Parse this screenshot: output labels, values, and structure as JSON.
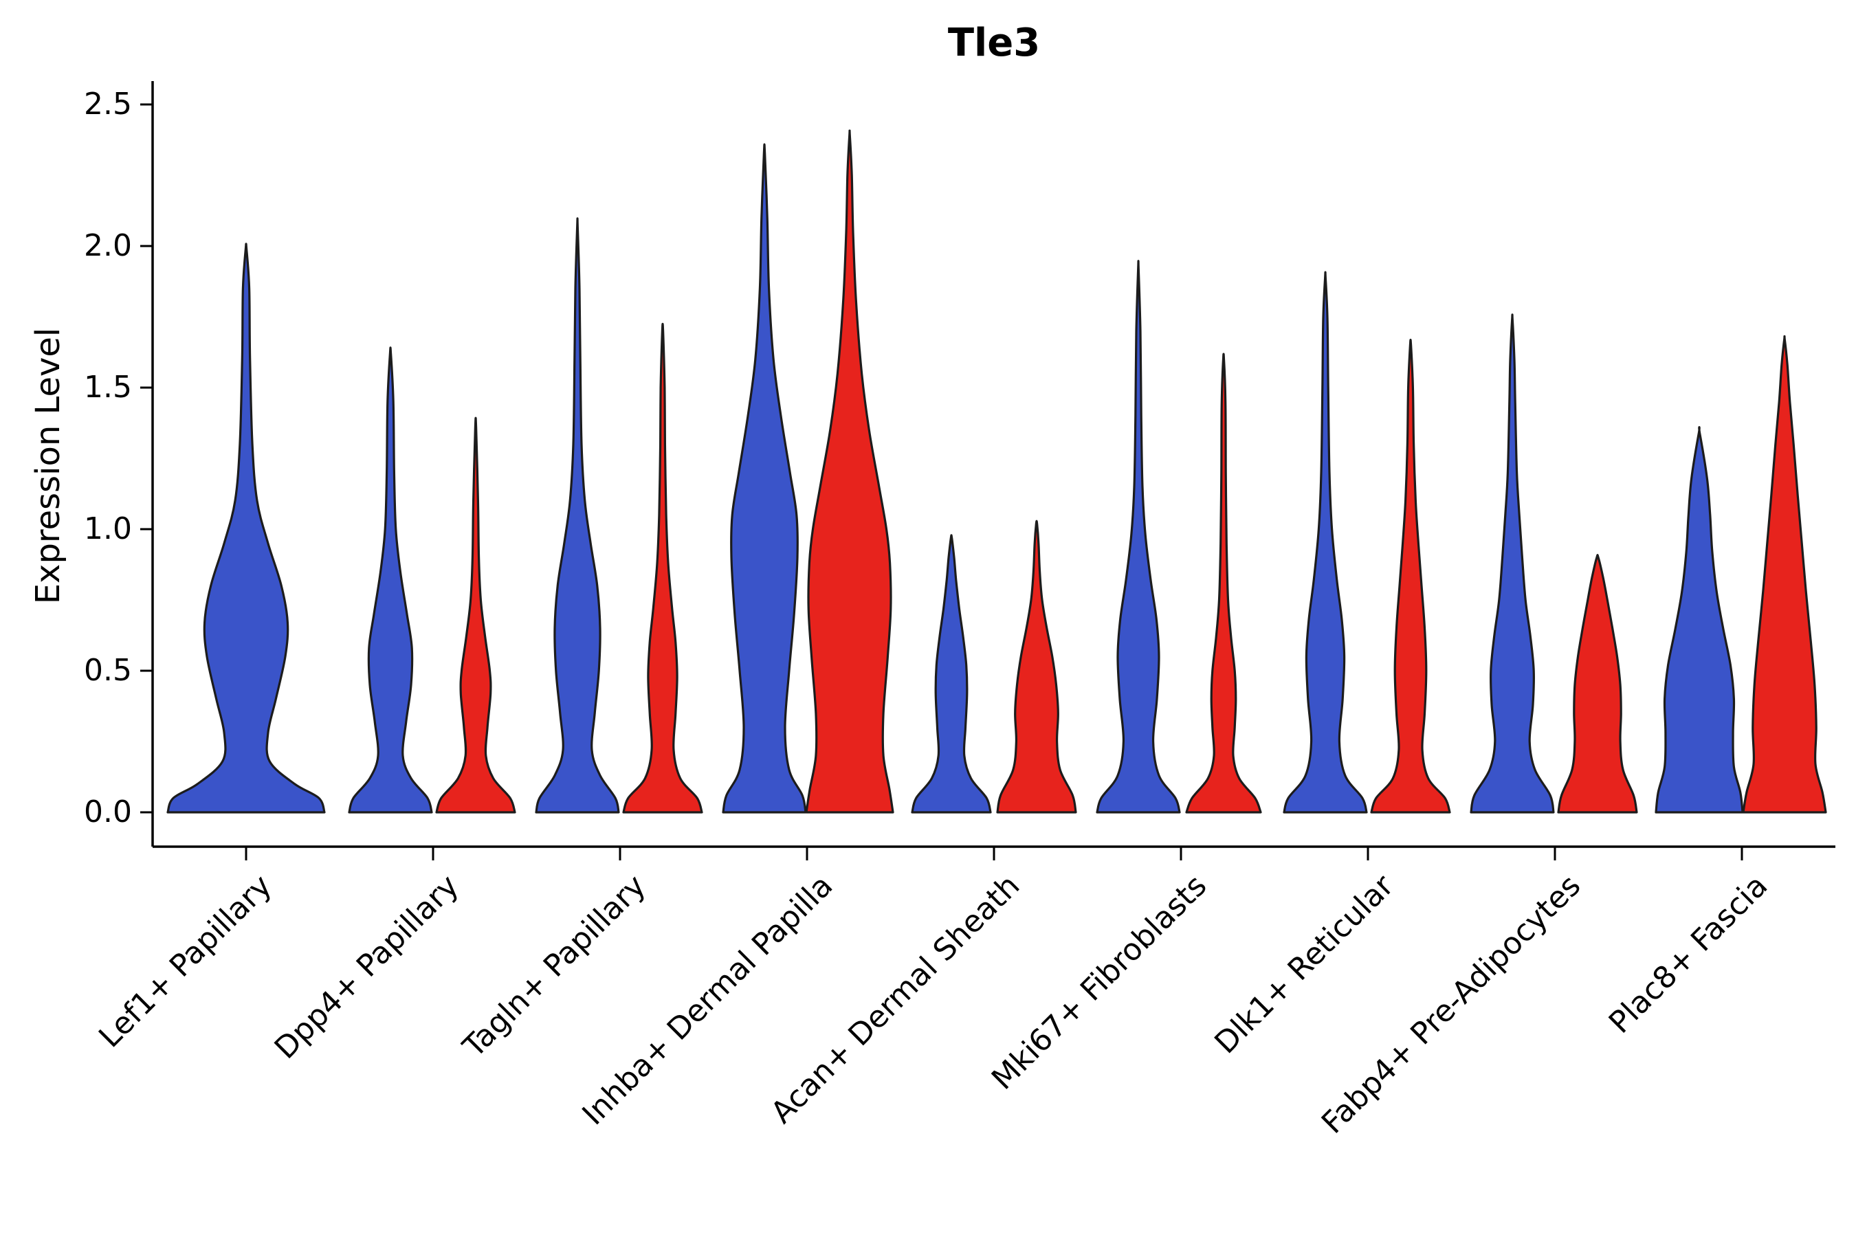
{
  "chart_data": {
    "type": "violin",
    "title": "Tle3",
    "ylabel": "Expression Level",
    "ylim": [
      0,
      2.5
    ],
    "ytick_labels": [
      "0.0",
      "0.5",
      "1.0",
      "1.5",
      "2.0",
      "2.5"
    ],
    "grid": false,
    "legend": "none",
    "edge_color": "#1c1c1c",
    "categories": [
      "Lef1+ Papillary",
      "Dpp4+ Papillary",
      "Tagln+ Papillary",
      "Inhba+ Dermal Papilla",
      "Acan+ Dermal Sheath",
      "Mki67+ Fibroblasts",
      "Dlk1+ Reticular",
      "Fabp4+ Pre-Adipocytes",
      "Plac8+ Fascia"
    ],
    "series": [
      {
        "name": "group-blue",
        "color": "#3a54c9",
        "violins": [
          {
            "max": 1.99,
            "scale": 1.9,
            "profile": [
              [
                0,
                1.0
              ],
              [
                0.05,
                0.93
              ],
              [
                0.1,
                0.62
              ],
              [
                0.18,
                0.3
              ],
              [
                0.28,
                0.28
              ],
              [
                0.4,
                0.38
              ],
              [
                0.55,
                0.5
              ],
              [
                0.67,
                0.53
              ],
              [
                0.8,
                0.45
              ],
              [
                0.95,
                0.28
              ],
              [
                1.1,
                0.14
              ],
              [
                1.3,
                0.08
              ],
              [
                1.6,
                0.05
              ],
              [
                1.85,
                0.04
              ],
              [
                1.99,
                0.005
              ]
            ]
          },
          {
            "max": 1.62,
            "scale": 1.0,
            "profile": [
              [
                0,
                1.0
              ],
              [
                0.05,
                0.9
              ],
              [
                0.12,
                0.5
              ],
              [
                0.2,
                0.3
              ],
              [
                0.32,
                0.38
              ],
              [
                0.45,
                0.5
              ],
              [
                0.58,
                0.52
              ],
              [
                0.7,
                0.4
              ],
              [
                0.85,
                0.24
              ],
              [
                1.0,
                0.13
              ],
              [
                1.2,
                0.09
              ],
              [
                1.45,
                0.07
              ],
              [
                1.62,
                0.01
              ]
            ]
          },
          {
            "max": 2.07,
            "scale": 1.0,
            "profile": [
              [
                0,
                1.0
              ],
              [
                0.05,
                0.92
              ],
              [
                0.13,
                0.55
              ],
              [
                0.22,
                0.35
              ],
              [
                0.35,
                0.42
              ],
              [
                0.5,
                0.52
              ],
              [
                0.65,
                0.55
              ],
              [
                0.8,
                0.48
              ],
              [
                0.95,
                0.32
              ],
              [
                1.1,
                0.18
              ],
              [
                1.3,
                0.1
              ],
              [
                1.6,
                0.07
              ],
              [
                1.85,
                0.05
              ],
              [
                2.07,
                0.005
              ]
            ]
          },
          {
            "max": 2.33,
            "scale": 1.0,
            "profile": [
              [
                0,
                1.0
              ],
              [
                0.06,
                0.92
              ],
              [
                0.15,
                0.6
              ],
              [
                0.3,
                0.5
              ],
              [
                0.5,
                0.6
              ],
              [
                0.7,
                0.72
              ],
              [
                0.9,
                0.8
              ],
              [
                1.05,
                0.78
              ],
              [
                1.2,
                0.62
              ],
              [
                1.4,
                0.4
              ],
              [
                1.6,
                0.22
              ],
              [
                1.85,
                0.11
              ],
              [
                2.1,
                0.07
              ],
              [
                2.33,
                0.01
              ]
            ]
          },
          {
            "max": 0.97,
            "scale": 0.95,
            "profile": [
              [
                0,
                1.0
              ],
              [
                0.05,
                0.9
              ],
              [
                0.12,
                0.5
              ],
              [
                0.2,
                0.33
              ],
              [
                0.3,
                0.36
              ],
              [
                0.42,
                0.4
              ],
              [
                0.52,
                0.38
              ],
              [
                0.62,
                0.3
              ],
              [
                0.72,
                0.2
              ],
              [
                0.82,
                0.12
              ],
              [
                0.9,
                0.07
              ],
              [
                0.97,
                0.01
              ]
            ]
          },
          {
            "max": 1.92,
            "scale": 1.0,
            "profile": [
              [
                0,
                1.0
              ],
              [
                0.05,
                0.9
              ],
              [
                0.13,
                0.5
              ],
              [
                0.25,
                0.36
              ],
              [
                0.4,
                0.45
              ],
              [
                0.55,
                0.5
              ],
              [
                0.68,
                0.44
              ],
              [
                0.82,
                0.3
              ],
              [
                0.98,
                0.17
              ],
              [
                1.15,
                0.1
              ],
              [
                1.4,
                0.07
              ],
              [
                1.7,
                0.05
              ],
              [
                1.92,
                0.005
              ]
            ]
          },
          {
            "max": 1.89,
            "scale": 1.0,
            "profile": [
              [
                0,
                1.0
              ],
              [
                0.05,
                0.9
              ],
              [
                0.13,
                0.48
              ],
              [
                0.25,
                0.34
              ],
              [
                0.4,
                0.42
              ],
              [
                0.55,
                0.46
              ],
              [
                0.68,
                0.4
              ],
              [
                0.82,
                0.28
              ],
              [
                1.0,
                0.16
              ],
              [
                1.2,
                0.1
              ],
              [
                1.5,
                0.07
              ],
              [
                1.75,
                0.05
              ],
              [
                1.89,
                0.005
              ]
            ]
          },
          {
            "max": 1.74,
            "scale": 1.0,
            "profile": [
              [
                0,
                1.0
              ],
              [
                0.06,
                0.92
              ],
              [
                0.15,
                0.55
              ],
              [
                0.25,
                0.42
              ],
              [
                0.38,
                0.5
              ],
              [
                0.5,
                0.52
              ],
              [
                0.62,
                0.44
              ],
              [
                0.75,
                0.32
              ],
              [
                0.9,
                0.24
              ],
              [
                1.05,
                0.17
              ],
              [
                1.2,
                0.11
              ],
              [
                1.45,
                0.07
              ],
              [
                1.6,
                0.05
              ],
              [
                1.74,
                0.005
              ]
            ]
          },
          {
            "max": 1.34,
            "scale": 1.05,
            "profile": [
              [
                0,
                1.0
              ],
              [
                0.07,
                0.95
              ],
              [
                0.16,
                0.8
              ],
              [
                0.28,
                0.78
              ],
              [
                0.4,
                0.8
              ],
              [
                0.52,
                0.72
              ],
              [
                0.65,
                0.55
              ],
              [
                0.78,
                0.4
              ],
              [
                0.92,
                0.3
              ],
              [
                1.05,
                0.25
              ],
              [
                1.18,
                0.18
              ],
              [
                1.34,
                0.01
              ]
            ]
          }
        ]
      },
      {
        "name": "group-red",
        "color": "#e7231d",
        "violins": [
          null,
          {
            "max": 1.36,
            "scale": 0.95,
            "profile": [
              [
                0,
                1.0
              ],
              [
                0.05,
                0.88
              ],
              [
                0.12,
                0.45
              ],
              [
                0.2,
                0.26
              ],
              [
                0.3,
                0.3
              ],
              [
                0.42,
                0.38
              ],
              [
                0.5,
                0.36
              ],
              [
                0.62,
                0.24
              ],
              [
                0.75,
                0.13
              ],
              [
                0.9,
                0.08
              ],
              [
                1.1,
                0.06
              ],
              [
                1.36,
                0.01
              ]
            ]
          },
          {
            "max": 1.7,
            "scale": 0.95,
            "profile": [
              [
                0,
                1.0
              ],
              [
                0.05,
                0.88
              ],
              [
                0.12,
                0.45
              ],
              [
                0.22,
                0.28
              ],
              [
                0.35,
                0.33
              ],
              [
                0.48,
                0.37
              ],
              [
                0.6,
                0.33
              ],
              [
                0.72,
                0.24
              ],
              [
                0.88,
                0.14
              ],
              [
                1.05,
                0.09
              ],
              [
                1.3,
                0.06
              ],
              [
                1.5,
                0.05
              ],
              [
                1.7,
                0.01
              ]
            ]
          },
          {
            "max": 2.39,
            "scale": 1.05,
            "profile": [
              [
                0,
                1.0
              ],
              [
                0.08,
                0.92
              ],
              [
                0.2,
                0.78
              ],
              [
                0.35,
                0.78
              ],
              [
                0.55,
                0.88
              ],
              [
                0.72,
                0.95
              ],
              [
                0.88,
                0.93
              ],
              [
                1.0,
                0.85
              ],
              [
                1.15,
                0.68
              ],
              [
                1.35,
                0.45
              ],
              [
                1.55,
                0.28
              ],
              [
                1.8,
                0.15
              ],
              [
                2.05,
                0.08
              ],
              [
                2.25,
                0.05
              ],
              [
                2.39,
                0.005
              ]
            ]
          },
          {
            "max": 1.02,
            "scale": 0.95,
            "profile": [
              [
                0,
                1.0
              ],
              [
                0.06,
                0.92
              ],
              [
                0.15,
                0.6
              ],
              [
                0.25,
                0.52
              ],
              [
                0.35,
                0.55
              ],
              [
                0.45,
                0.5
              ],
              [
                0.55,
                0.4
              ],
              [
                0.65,
                0.26
              ],
              [
                0.75,
                0.14
              ],
              [
                0.85,
                0.08
              ],
              [
                0.95,
                0.05
              ],
              [
                1.02,
                0.01
              ]
            ]
          },
          {
            "max": 1.6,
            "scale": 0.9,
            "profile": [
              [
                0,
                1.0
              ],
              [
                0.05,
                0.85
              ],
              [
                0.12,
                0.42
              ],
              [
                0.2,
                0.26
              ],
              [
                0.3,
                0.3
              ],
              [
                0.4,
                0.33
              ],
              [
                0.5,
                0.3
              ],
              [
                0.62,
                0.2
              ],
              [
                0.75,
                0.12
              ],
              [
                0.95,
                0.08
              ],
              [
                1.2,
                0.06
              ],
              [
                1.45,
                0.05
              ],
              [
                1.6,
                0.01
              ]
            ]
          },
          {
            "max": 1.65,
            "scale": 0.95,
            "profile": [
              [
                0,
                1.0
              ],
              [
                0.05,
                0.88
              ],
              [
                0.12,
                0.45
              ],
              [
                0.22,
                0.3
              ],
              [
                0.35,
                0.36
              ],
              [
                0.5,
                0.4
              ],
              [
                0.65,
                0.36
              ],
              [
                0.8,
                0.28
              ],
              [
                0.95,
                0.2
              ],
              [
                1.1,
                0.13
              ],
              [
                1.3,
                0.08
              ],
              [
                1.5,
                0.06
              ],
              [
                1.65,
                0.01
              ]
            ]
          },
          {
            "max": 0.9,
            "scale": 0.95,
            "profile": [
              [
                0,
                1.0
              ],
              [
                0.06,
                0.92
              ],
              [
                0.15,
                0.65
              ],
              [
                0.25,
                0.58
              ],
              [
                0.35,
                0.6
              ],
              [
                0.45,
                0.58
              ],
              [
                0.55,
                0.5
              ],
              [
                0.65,
                0.38
              ],
              [
                0.75,
                0.25
              ],
              [
                0.83,
                0.14
              ],
              [
                0.9,
                0.02
              ]
            ]
          },
          {
            "max": 1.67,
            "scale": 1.0,
            "profile": [
              [
                0,
                1.0
              ],
              [
                0.07,
                0.92
              ],
              [
                0.17,
                0.75
              ],
              [
                0.3,
                0.77
              ],
              [
                0.45,
                0.73
              ],
              [
                0.6,
                0.64
              ],
              [
                0.78,
                0.52
              ],
              [
                0.95,
                0.42
              ],
              [
                1.12,
                0.32
              ],
              [
                1.3,
                0.22
              ],
              [
                1.45,
                0.13
              ],
              [
                1.58,
                0.07
              ],
              [
                1.67,
                0.005
              ]
            ]
          }
        ]
      }
    ]
  }
}
